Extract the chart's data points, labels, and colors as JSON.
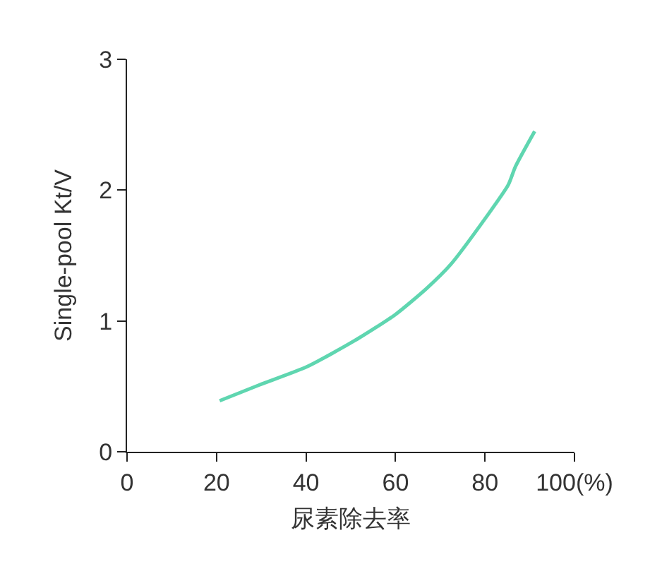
{
  "chart_data": {
    "type": "line",
    "xlabel": "尿素除去率",
    "ylabel": "Single-pool Kt/V",
    "x": [
      20.7,
      29.5,
      40.2,
      50.9,
      60.0,
      67.0,
      72.3,
      80.4,
      85.2,
      86.8,
      91.1
    ],
    "values": [
      0.39,
      0.51,
      0.65,
      0.85,
      1.05,
      1.25,
      1.43,
      1.8,
      2.04,
      2.18,
      2.45
    ],
    "color": "#5fd6b0",
    "xlim": [
      0,
      100
    ],
    "xticks": [
      0,
      20,
      40,
      60,
      80,
      {
        "value": 100,
        "label": "100(%)"
      }
    ],
    "ylim": [
      0,
      3
    ],
    "yticks": [
      0,
      1,
      2,
      3
    ],
    "grid": false,
    "marker": "none",
    "line_style": "solid"
  }
}
